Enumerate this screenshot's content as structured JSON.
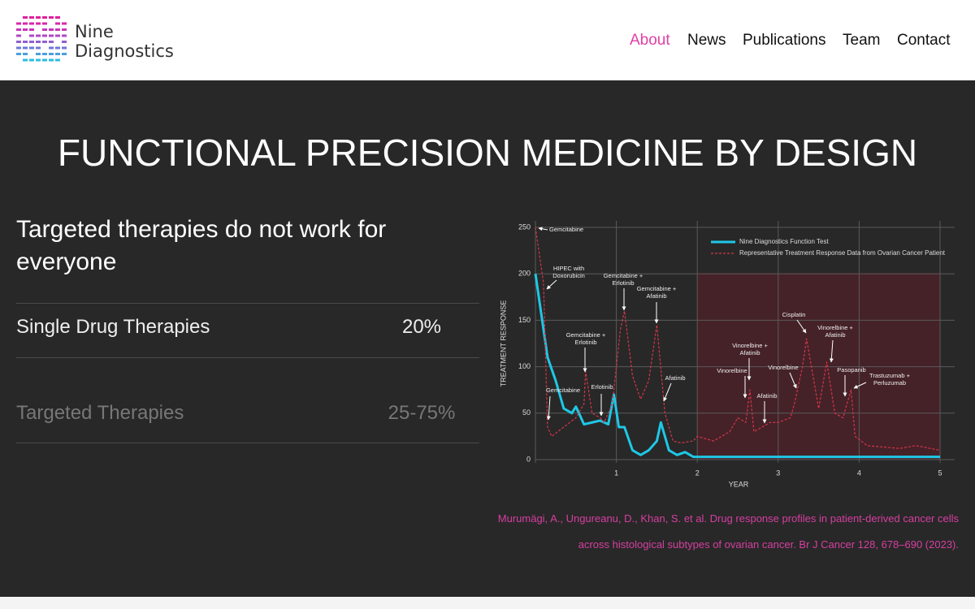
{
  "header": {
    "logo": [
      "Nine",
      "Diagnostics"
    ],
    "nav": [
      "About",
      "News",
      "Publications",
      "Team",
      "Contact"
    ]
  },
  "hero": {
    "title": "FUNCTIONAL PRECISION MEDICINE BY DESIGN"
  },
  "comparison": {
    "heading": "Targeted therapies do not work for everyone",
    "rows": [
      [
        "Single Drug Therapies",
        "20%"
      ],
      [
        "Targeted Therapies",
        "25-75%"
      ]
    ]
  },
  "chart_data": {
    "type": "line",
    "xlabel": "YEAR",
    "ylabel": "TREATMENT RESPONSE",
    "xlim": [
      0,
      5
    ],
    "xticks": [
      1,
      2,
      3,
      4,
      5
    ],
    "ylim": [
      0,
      250
    ],
    "yticks": [
      0,
      50,
      100,
      150,
      200,
      250
    ],
    "grid": true,
    "series": [
      {
        "name": "Nine Diagnostics Function Test",
        "color": "#1ec8e6",
        "line_style": "solid",
        "x": [
          0,
          0.1,
          0.15,
          0.25,
          0.35,
          0.45,
          0.5,
          0.6,
          0.7,
          0.8,
          0.9,
          0.97,
          1.03,
          1.1,
          1.2,
          1.3,
          1.4,
          1.5,
          1.55,
          1.65,
          1.75,
          1.85,
          1.95,
          2.0,
          5.0
        ],
        "values": [
          200,
          140,
          110,
          85,
          55,
          50,
          57,
          38,
          40,
          42,
          38,
          70,
          35,
          35,
          10,
          5,
          10,
          20,
          40,
          10,
          5,
          8,
          3,
          3,
          3
        ]
      },
      {
        "name": "Representative Treatment Response Data from Ovarian Cancer Patient",
        "color": "#d8344a",
        "line_style": "dashed",
        "x": [
          0,
          0.1,
          0.15,
          0.2,
          0.35,
          0.5,
          0.6,
          0.62,
          0.7,
          0.8,
          0.85,
          0.95,
          1.05,
          1.1,
          1.2,
          1.3,
          1.4,
          1.5,
          1.6,
          1.7,
          1.8,
          1.95,
          2.0,
          2.2,
          2.4,
          2.5,
          2.6,
          2.65,
          2.7,
          2.8,
          2.9,
          3.0,
          3.15,
          3.2,
          3.3,
          3.35,
          3.45,
          3.5,
          3.6,
          3.7,
          3.8,
          3.9,
          3.95,
          4.1,
          4.5,
          4.7,
          5.0
        ],
        "values": [
          250,
          190,
          35,
          25,
          35,
          45,
          60,
          95,
          50,
          45,
          40,
          60,
          140,
          160,
          90,
          65,
          85,
          145,
          50,
          20,
          18,
          20,
          25,
          20,
          30,
          45,
          40,
          75,
          30,
          35,
          40,
          40,
          45,
          60,
          100,
          130,
          80,
          55,
          105,
          50,
          45,
          75,
          25,
          15,
          12,
          15,
          10
        ]
      }
    ],
    "annotations": [
      [
        "Gemcitabine"
      ],
      [
        "HIPEC with",
        "Doxorubicin"
      ],
      [
        "Gemcitabine"
      ],
      [
        "Gemcitabine +",
        "Erlotinib"
      ],
      [
        "Erlotinib"
      ],
      [
        "Gemcitabine +",
        "Erlotinib"
      ],
      [
        "Gemcitabine +",
        "Afatinib"
      ],
      [
        "Afatinib"
      ],
      [
        "Vinorelbine +",
        "Afatinib"
      ],
      [
        "Vinorelbine"
      ],
      [
        "Afatinib"
      ],
      [
        "Vinorelbine"
      ],
      [
        "Cisplatin"
      ],
      [
        "Vinorelbine +",
        "Afatinib"
      ],
      [
        "Pasopanib"
      ],
      [
        "Trastuzumab +",
        "Perluzumab"
      ]
    ]
  },
  "citation": "Murumägi, A., Ungureanu, D., Khan, S. et al. Drug response profiles in patient-derived cancer cells across histological subtypes of ovarian cancer. Br J Cancer 128, 678–690 (2023)."
}
